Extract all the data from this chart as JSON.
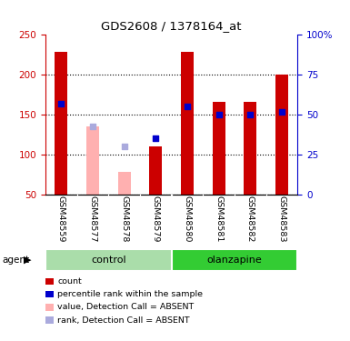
{
  "title": "GDS2608 / 1378164_at",
  "samples": [
    "GSM48559",
    "GSM48577",
    "GSM48578",
    "GSM48579",
    "GSM48580",
    "GSM48581",
    "GSM48582",
    "GSM48583"
  ],
  "bar_values": [
    228,
    135,
    78,
    110,
    228,
    165,
    165,
    200
  ],
  "bar_absent": [
    false,
    true,
    true,
    false,
    false,
    false,
    false,
    false
  ],
  "bar_color_present": "#cc0000",
  "bar_color_absent": "#ffb0b0",
  "rank_values": [
    163,
    135,
    110,
    120,
    160,
    150,
    150,
    153
  ],
  "rank_absent": [
    false,
    true,
    true,
    false,
    false,
    false,
    false,
    false
  ],
  "rank_color_present": "#0000cc",
  "rank_color_absent": "#aaaadd",
  "ylim_left": [
    50,
    250
  ],
  "ylim_right": [
    0,
    100
  ],
  "yticks_left": [
    50,
    100,
    150,
    200,
    250
  ],
  "yticks_right": [
    0,
    25,
    50,
    75,
    100
  ],
  "ytick_labels_right": [
    "0",
    "25",
    "50",
    "75",
    "100%"
  ],
  "ylabel_left_color": "#cc0000",
  "ylabel_right_color": "#0000cc",
  "bar_width": 0.4,
  "legend_items": [
    {
      "label": "count",
      "color": "#cc0000"
    },
    {
      "label": "percentile rank within the sample",
      "color": "#0000cc"
    },
    {
      "label": "value, Detection Call = ABSENT",
      "color": "#ffb0b0"
    },
    {
      "label": "rank, Detection Call = ABSENT",
      "color": "#aaaadd"
    }
  ],
  "control_color": "#aaddaa",
  "olanzapine_color": "#33cc33",
  "group_label_bg": "#c8c8c8"
}
